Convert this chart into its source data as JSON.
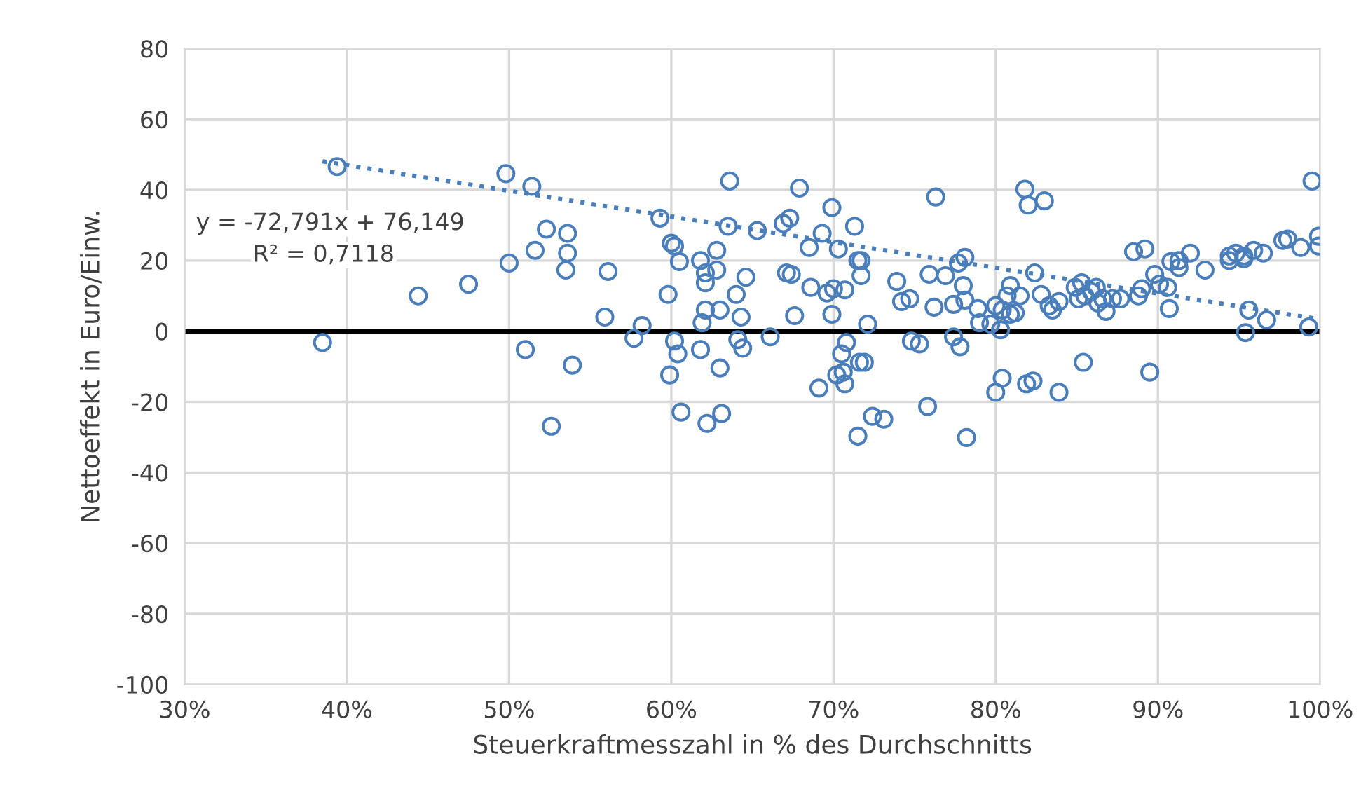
{
  "chart_data": {
    "type": "scatter",
    "xlabel": "Steuerkraftmesszahl in % des Durchschnitts",
    "ylabel": "Nettoeffekt in Euro/Einw.",
    "xlim": [
      0.3,
      1.0
    ],
    "xticks": [
      {
        "value": 0.3,
        "label": "30%"
      },
      {
        "value": 0.4,
        "label": "40%"
      },
      {
        "value": 0.5,
        "label": "50%"
      },
      {
        "value": 0.6,
        "label": "60%"
      },
      {
        "value": 0.7,
        "label": "70%"
      },
      {
        "value": 0.8,
        "label": "80%"
      },
      {
        "value": 0.9,
        "label": "90%"
      },
      {
        "value": 1.0,
        "label": "100%"
      }
    ],
    "ylim": [
      -100,
      80
    ],
    "yticks": [
      -100,
      -80,
      -60,
      -40,
      -20,
      0,
      20,
      40,
      60,
      80
    ],
    "grid": true,
    "legend": false,
    "marker": "circle",
    "ref_lines": [
      {
        "axis": "y",
        "value": 0,
        "color": "#000000"
      }
    ],
    "annotations": [
      "y = -72,791x + 76,149",
      "R² = 0,7118"
    ],
    "series": [
      {
        "color": "#4a7ebb",
        "x": [
          0.636,
          0.679,
          0.763,
          0.699,
          0.593,
          0.635,
          0.653,
          0.669,
          0.673,
          0.713,
          0.693,
          0.685,
          0.703,
          0.6,
          0.602,
          0.605,
          0.628,
          0.618,
          0.621,
          0.621,
          0.628,
          0.646,
          0.64,
          0.598,
          0.621,
          0.63,
          0.619,
          0.643,
          0.671,
          0.674,
          0.686,
          0.696,
          0.7,
          0.707,
          0.715,
          0.717,
          0.717,
          0.676,
          0.699,
          0.721,
          0.582,
          0.577,
          0.602,
          0.604,
          0.618,
          0.599,
          0.63,
          0.641,
          0.644,
          0.661,
          0.708,
          0.705,
          0.702,
          0.706,
          0.707,
          0.691,
          0.716,
          0.719,
          0.606,
          0.622,
          0.631,
          0.724,
          0.731,
          0.715,
          0.758,
          0.782,
          0.739,
          0.742,
          0.747,
          0.748,
          0.753,
          0.759,
          0.769,
          0.762,
          0.774,
          0.78,
          0.781,
          0.777,
          0.781,
          0.774,
          0.778,
          0.789,
          0.79,
          0.385,
          0.394,
          0.444,
          0.475,
          0.498,
          0.5,
          0.514,
          0.516,
          0.523,
          0.536,
          0.536,
          0.535,
          0.561,
          0.559,
          0.51,
          0.539,
          0.526,
          0.995,
          0.818,
          0.82,
          0.83,
          0.885,
          0.892,
          0.908,
          0.913,
          0.913,
          0.92,
          0.929,
          0.944,
          0.944,
          0.948,
          0.953,
          0.953,
          0.959,
          0.965,
          0.977,
          0.98,
          0.988,
          0.999,
          0.999,
          0.824,
          0.898,
          0.901,
          0.906,
          0.907,
          0.956,
          0.967,
          0.954,
          0.993,
          0.895,
          0.854,
          0.804,
          0.8,
          0.819,
          0.823,
          0.839,
          0.8,
          0.797,
          0.803,
          0.804,
          0.807,
          0.809,
          0.809,
          0.812,
          0.815,
          0.828,
          0.833,
          0.835,
          0.839,
          0.849,
          0.851,
          0.853,
          0.855,
          0.859,
          0.862,
          0.863,
          0.866,
          0.868,
          0.872,
          0.877,
          0.888,
          0.89
        ],
        "values": [
          42.5,
          40.5,
          38,
          35,
          32,
          29.7,
          28.5,
          30.5,
          32,
          29.7,
          27.7,
          23.7,
          23.3,
          24.9,
          24.1,
          19.7,
          22.9,
          20,
          16.5,
          13.7,
          17.3,
          15.3,
          10.4,
          10.4,
          6,
          6,
          2.4,
          4,
          16.5,
          16.1,
          12.4,
          10.8,
          12,
          11.7,
          20,
          20,
          15.7,
          4.4,
          4.8,
          2,
          1.6,
          -2,
          -2.8,
          -6.4,
          -5.2,
          -12.4,
          -10.4,
          -2.4,
          -4.8,
          -1.6,
          -3.2,
          -6.4,
          -12.4,
          -11.6,
          -14.9,
          -16.1,
          -8.8,
          -8.8,
          -22.9,
          -26.1,
          -23.3,
          -24.1,
          -24.9,
          -29.7,
          -21.3,
          -30.1,
          14.1,
          8.4,
          9.2,
          -2.8,
          -3.6,
          16.1,
          15.7,
          6.8,
          7.6,
          12.9,
          8.8,
          19.3,
          20.9,
          -1.6,
          -4.4,
          6.4,
          2.4,
          -3.2,
          46.6,
          10,
          13.3,
          44.6,
          19.3,
          41,
          22.9,
          28.9,
          27.7,
          22.1,
          17.3,
          16.9,
          4,
          -5.2,
          -9.6,
          -26.9,
          42.5,
          40.2,
          35.7,
          36.9,
          22.5,
          23.3,
          19.7,
          20,
          18,
          22.1,
          17.3,
          21.3,
          20,
          22.1,
          21.3,
          20.5,
          22.9,
          22.1,
          25.7,
          26.1,
          23.7,
          26.9,
          24.1,
          16.5,
          16.1,
          13.3,
          12.4,
          6.4,
          6,
          3.2,
          -0.4,
          1.2,
          -11.6,
          -8.8,
          -13.3,
          -17.3,
          -14.9,
          -14.1,
          -17.3,
          7.2,
          2,
          0.4,
          6,
          10,
          12.9,
          4.8,
          5.2,
          10,
          10.4,
          7.2,
          6,
          8.4,
          12.4,
          9.2,
          13.7,
          10,
          11.2,
          12.4,
          8,
          9.2,
          5.6,
          9.2,
          9.2,
          10,
          12
        ]
      },
      {
        "type": "line",
        "color": "#4a7ebb",
        "line_style": "dotted",
        "marker": "none",
        "x": [
          0.385,
          1.0
        ],
        "values": [
          48.1,
          3.4
        ]
      }
    ]
  }
}
